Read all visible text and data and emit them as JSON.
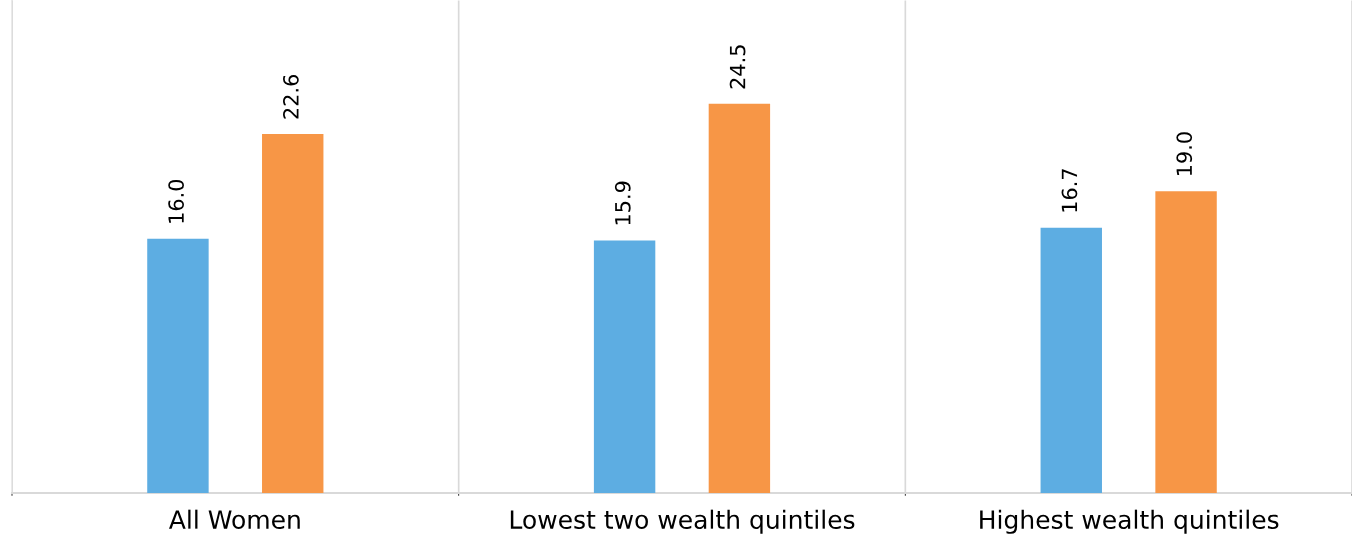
{
  "chart_data": {
    "type": "bar",
    "categories": [
      "All Women",
      "Lowest two wealth quintiles",
      "Highest wealth quintiles"
    ],
    "series": [
      {
        "color": "#5dade2",
        "values": [
          16.0,
          15.9,
          16.7
        ],
        "value_labels": [
          "16.0",
          "15.9",
          "16.7"
        ]
      },
      {
        "color": "#f79646",
        "values": [
          22.6,
          24.5,
          19.0
        ],
        "value_labels": [
          "22.6",
          "24.5",
          "19.0"
        ]
      }
    ],
    "ylim": [
      0,
      31
    ],
    "grid": "x",
    "tick_labels": "x",
    "legend": false
  }
}
